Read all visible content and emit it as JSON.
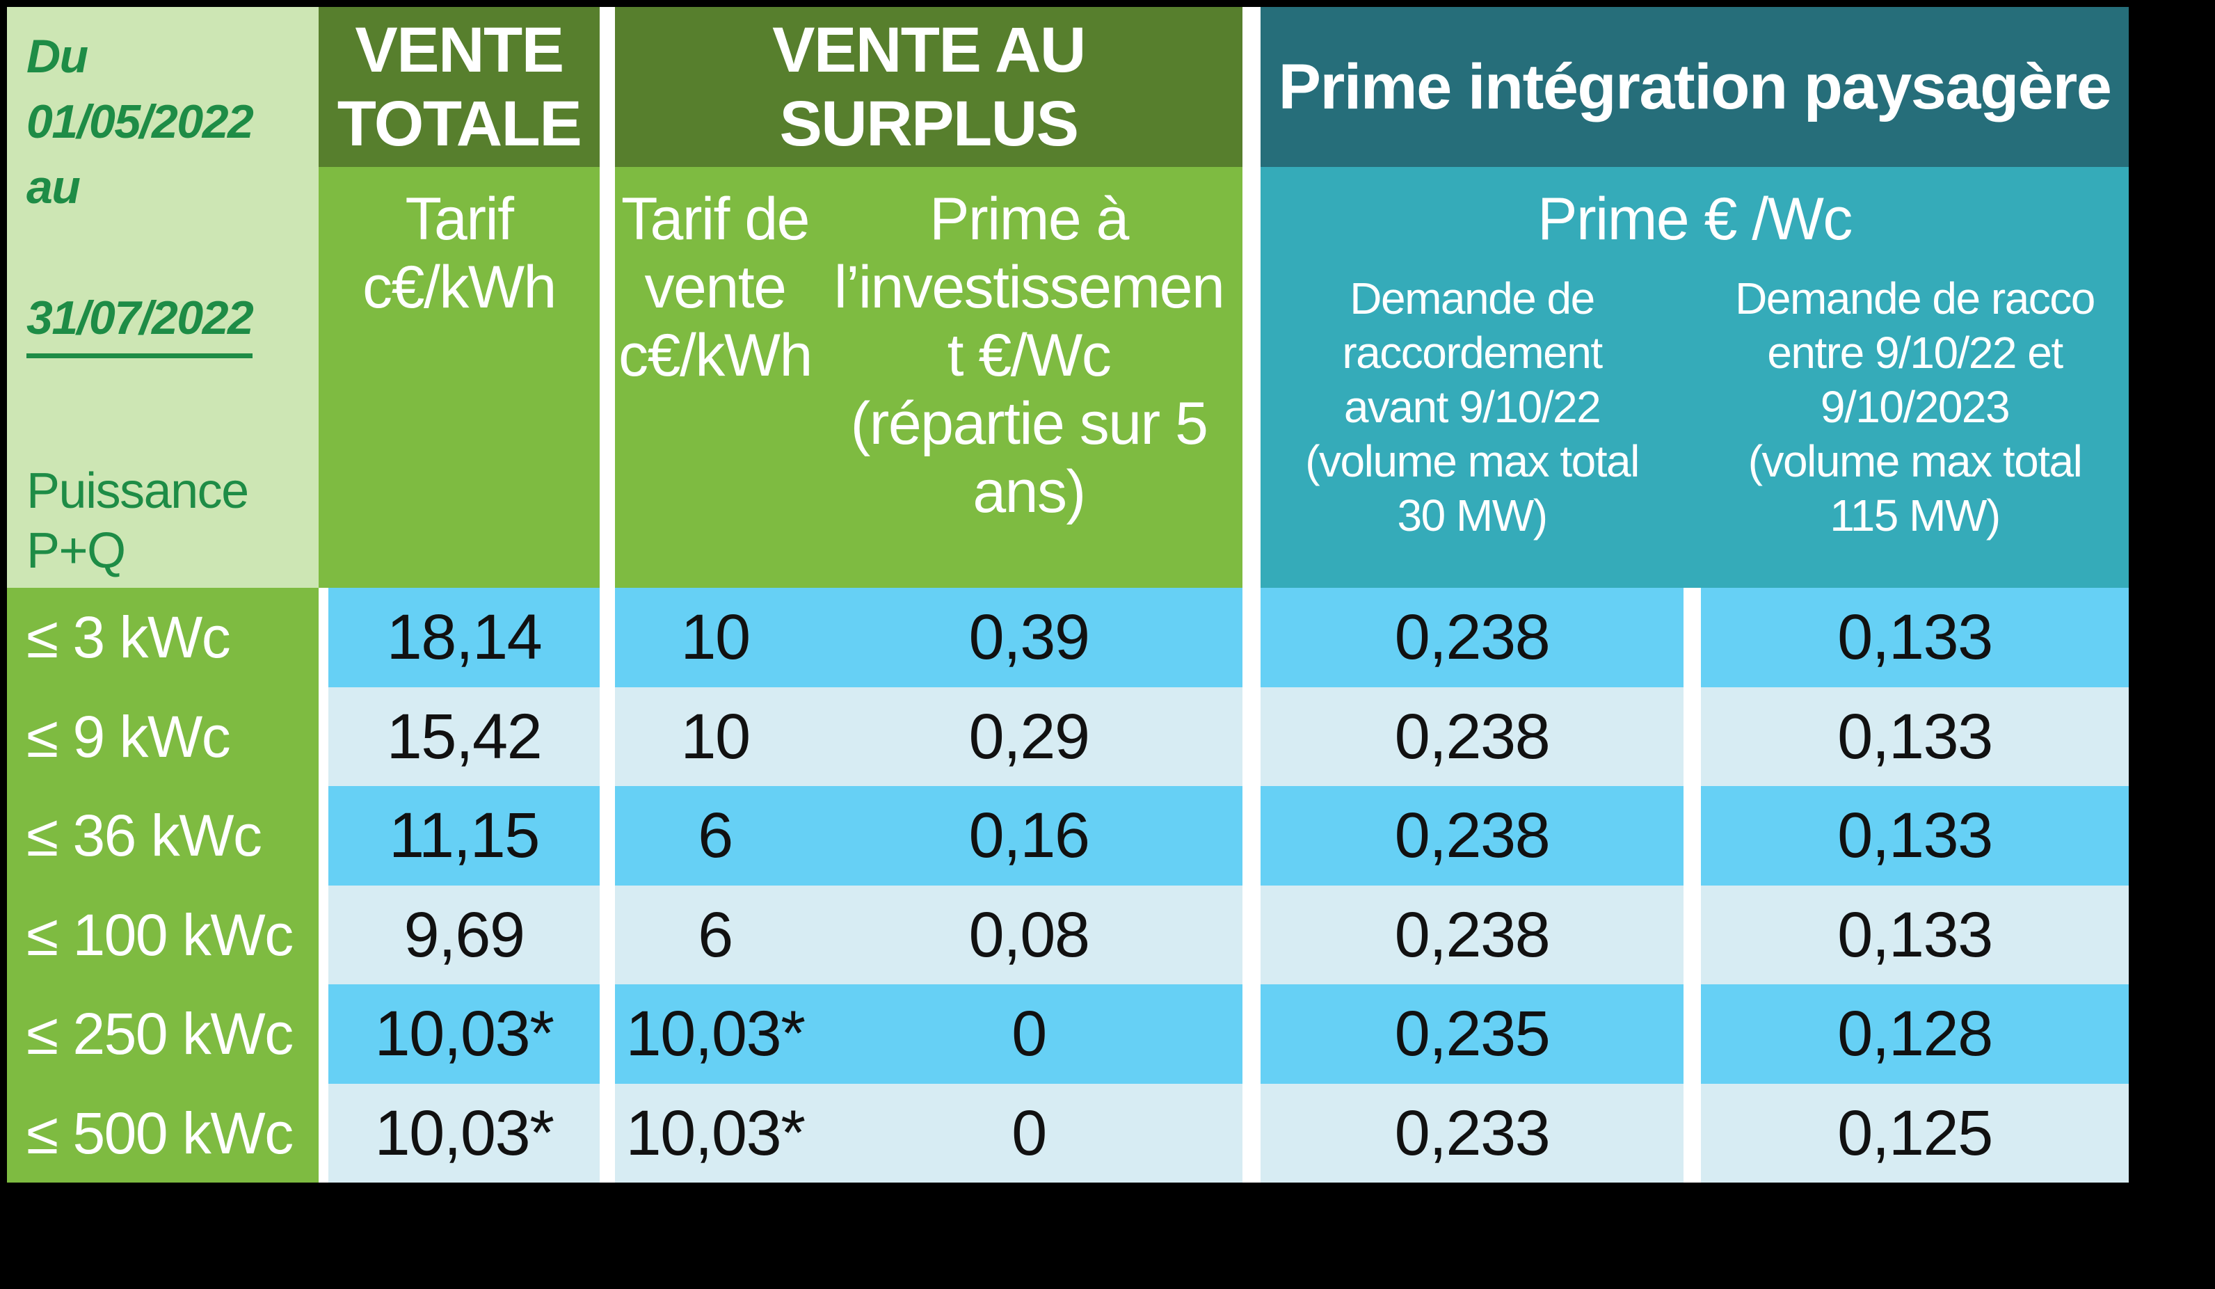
{
  "slide": {
    "period": {
      "intro_lines": "Du\n01/05/2022\nau",
      "end_date": "31/07/2022"
    },
    "axis_label": "Puissance\nP+Q",
    "columns": {
      "vente_totale": {
        "title": "VENTE\nTOTALE",
        "subtitle": "Tarif\nc€/kWh"
      },
      "vente_surplus": {
        "title": "VENTE AU SURPLUS",
        "tarif_subtitle": "Tarif de\nvente\nc€/kWh",
        "prime_subtitle": "Prime à\nl’investissemen\nt €/Wc\n(répartie sur 5\nans)"
      },
      "prime_paysagere": {
        "title": "Prime intégration paysagère",
        "unit_subtitle": "Prime € /Wc",
        "avant_subtitle": "Demande de\nraccordement\navant 9/10/22\n(volume max total\n30 MW)",
        "entre_subtitle": "Demande de racco\nentre 9/10/22 et\n9/10/2023\n(volume max total\n115 MW)"
      }
    },
    "rows": [
      {
        "puissance": "≤ 3 kWc",
        "vente_totale": "18,14",
        "tarif_surplus": "10",
        "prime_invest": "0,39",
        "prime_avant": "0,238",
        "prime_entre": "0,133"
      },
      {
        "puissance": "≤ 9 kWc",
        "vente_totale": "15,42",
        "tarif_surplus": "10",
        "prime_invest": "0,29",
        "prime_avant": "0,238",
        "prime_entre": "0,133"
      },
      {
        "puissance": "≤ 36 kWc",
        "vente_totale": "11,15",
        "tarif_surplus": "6",
        "prime_invest": "0,16",
        "prime_avant": "0,238",
        "prime_entre": "0,133"
      },
      {
        "puissance": "≤ 100 kWc",
        "vente_totale": "9,69",
        "tarif_surplus": "6",
        "prime_invest": "0,08",
        "prime_avant": "0,238",
        "prime_entre": "0,133"
      },
      {
        "puissance": "≤ 250 kWc",
        "vente_totale": "10,03*",
        "tarif_surplus": "10,03*",
        "prime_invest": "0",
        "prime_avant": "0,235",
        "prime_entre": "0,128"
      },
      {
        "puissance": "≤ 500 kWc",
        "vente_totale": "10,03*",
        "tarif_surplus": "10,03*",
        "prime_invest": "0",
        "prime_avant": "0,233",
        "prime_entre": "0,125"
      }
    ],
    "colors": {
      "background": "#000000",
      "divider": "#ffffff",
      "period_cell": "#cde6b4",
      "green_dark": "#577f2d",
      "green_mid": "#7ebb41",
      "teal_dark": "#266e7a",
      "teal_light": "#35abb9",
      "row_blue": "#66d0f5",
      "row_pale": "#d7ecf3",
      "text_green": "#1e8c46"
    }
  }
}
